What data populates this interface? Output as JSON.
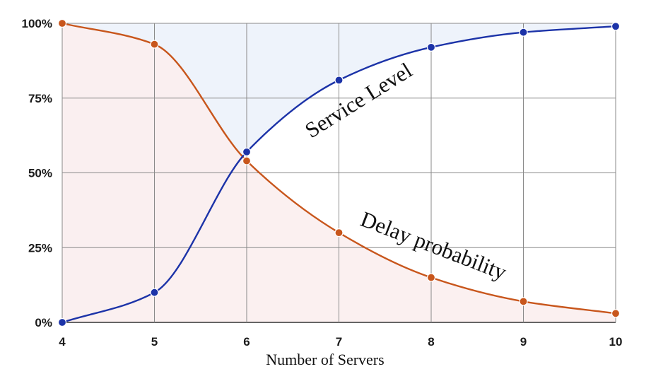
{
  "chart_data": {
    "type": "line",
    "title": "",
    "xlabel": "Number of Servers",
    "ylabel": "",
    "x": [
      4,
      5,
      6,
      7,
      8,
      9,
      10
    ],
    "xlim": [
      4,
      10
    ],
    "ylim": [
      0,
      100
    ],
    "x_ticks": [
      "4",
      "5",
      "6",
      "7",
      "8",
      "9",
      "10"
    ],
    "y_ticks": [
      {
        "value": 0,
        "label": "0%"
      },
      {
        "value": 25,
        "label": "25%"
      },
      {
        "value": 50,
        "label": "50%"
      },
      {
        "value": 75,
        "label": "75%"
      },
      {
        "value": 100,
        "label": "100%"
      }
    ],
    "grid": true,
    "series": [
      {
        "name": "Service Level",
        "values": [
          0,
          10,
          57,
          81,
          92,
          97,
          99
        ],
        "color": "#1c33a8",
        "fill": "#eef3fb"
      },
      {
        "name": "Delay probability",
        "values": [
          100,
          93,
          54,
          30,
          15,
          7,
          3
        ],
        "color": "#c8561c",
        "fill": "#fbeeee"
      }
    ],
    "annotations": [
      {
        "text": "Service Level",
        "series": "Service Level"
      },
      {
        "text": "Delay probability",
        "series": "Delay probability"
      }
    ]
  }
}
